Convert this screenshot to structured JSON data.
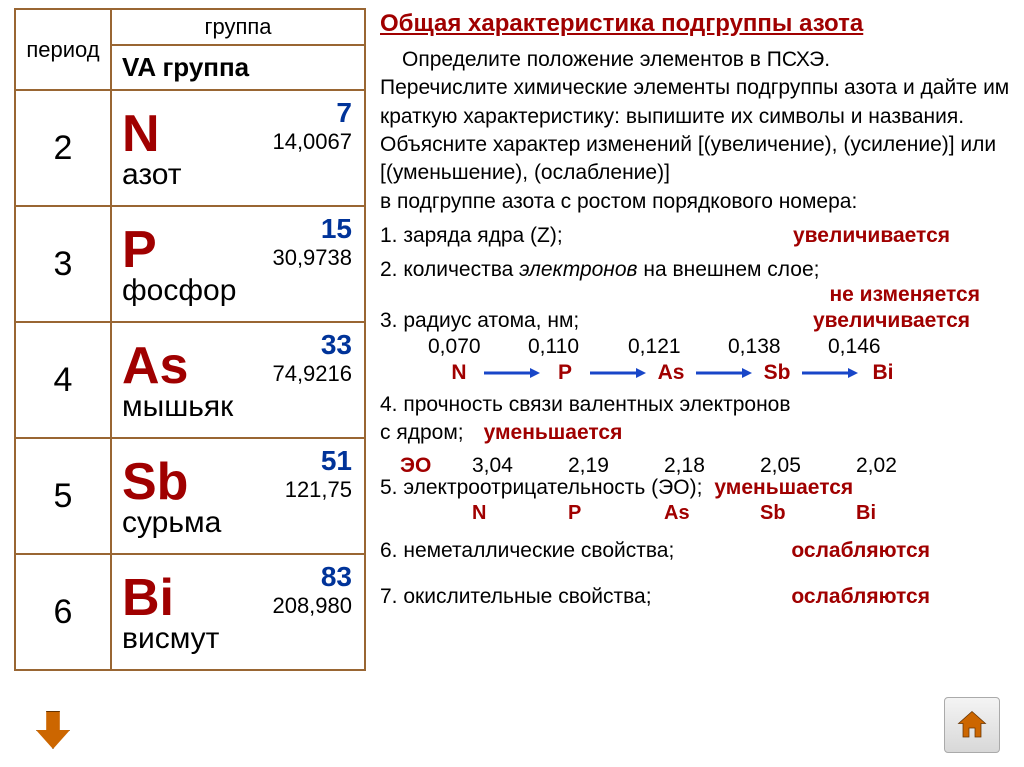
{
  "title": "Общая характеристика подгруппы азота",
  "table": {
    "header_period": "период",
    "header_group": "группа",
    "va_label": "VA группа",
    "border_color": "#996633",
    "elements": [
      {
        "period": "2",
        "sym": "N",
        "num": "7",
        "mass": "14,0067",
        "name": "азот"
      },
      {
        "period": "3",
        "sym": "P",
        "num": "15",
        "mass": "30,9738",
        "name": "фосфор"
      },
      {
        "period": "4",
        "sym": "As",
        "num": "33",
        "mass": "74,9216",
        "name": "мышьяк"
      },
      {
        "period": "5",
        "sym": "Sb",
        "num": "51",
        "mass": "121,75",
        "name": "сурьма"
      },
      {
        "period": "6",
        "sym": "Bi",
        "num": "83",
        "mass": "208,980",
        "name": "висмут"
      }
    ]
  },
  "intro": {
    "p1": "Определите положение элементов в ПСХЭ.",
    "p2": "Перечислите химические элементы подгруппы азота и дайте им краткую характеристику: выпишите их символы и названия.",
    "p3a": "Объясните характер изменений [(увеличение), (усиление)] или [(уменьшение), (ослабление)]",
    "p3b": "в подгруппе азота с ростом порядкового номера:"
  },
  "q1": {
    "text": "1.  заряда ядра (Z);",
    "ans": "увеличивается"
  },
  "q2": {
    "text_a": "2. количества ",
    "text_i": "электронов",
    "text_b": " на внешнем слое;",
    "ans": "не изменяется"
  },
  "q3": {
    "text": "3. радиус атома, нм;",
    "ans": "увеличивается",
    "radii": [
      "0,070",
      "0,110",
      "0,121",
      "0,138",
      "0,146"
    ],
    "syms": [
      "N",
      "P",
      "As",
      "Sb",
      "Bi"
    ]
  },
  "q4": {
    "text_a": "4. прочность связи валентных электронов",
    "text_b": "с ядром;",
    "ans": "уменьшается"
  },
  "q5": {
    "eo_label": "ЭО",
    "eo_vals": [
      "3,04",
      "2,19",
      "2,18",
      "2,05",
      "2,02"
    ],
    "text": "5. электроотрицательность (ЭО);",
    "ans": "уменьшается",
    "syms": [
      "N",
      "P",
      "As",
      "Sb",
      "Bi"
    ]
  },
  "q6": {
    "text": "6. неметаллические свойства;",
    "ans": "ослабляются"
  },
  "q7": {
    "text": "7. окислительные свойства;",
    "ans": "ослабляются"
  },
  "colors": {
    "accent_red": "#a00000",
    "accent_blue": "#003399",
    "arrow_blue": "#1846c8",
    "nav_orange": "#cc6600"
  }
}
